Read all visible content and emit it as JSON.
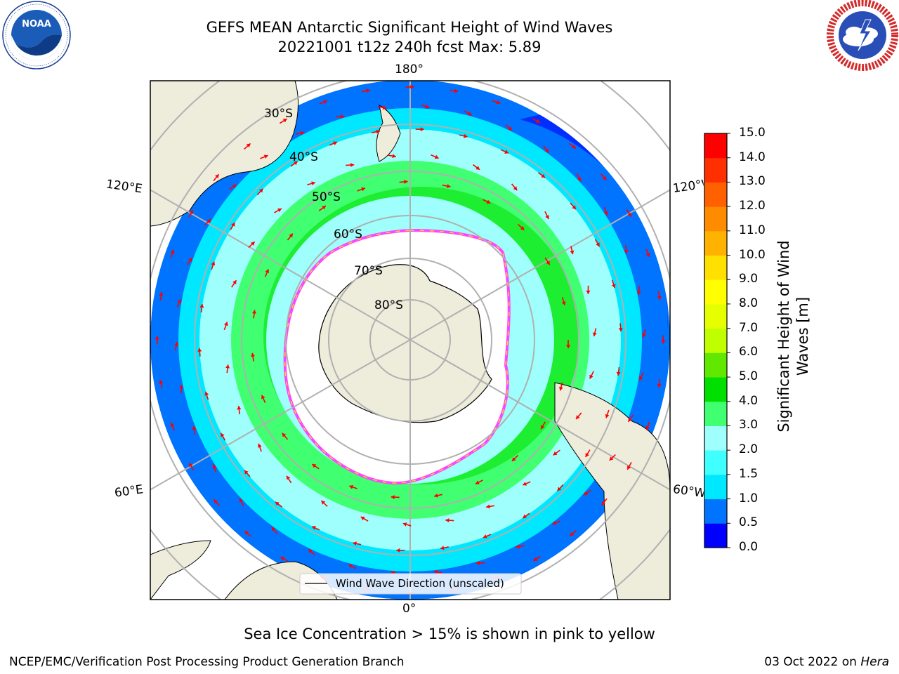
{
  "header": {
    "title_line1": "GEFS MEAN Antarctic Significant Height of Wind Waves",
    "title_line2": "20221001 t12z 240h fcst   Max: 5.89"
  },
  "logos": {
    "noaa_text": "NOAA",
    "noaa_ring_text": "NATIONAL OCEANIC AND ATMOSPHERIC ADMINISTRATION · U.S. DEPARTMENT OF COMMERCE",
    "nws_ring_text": "NATIONAL WEATHER SERVICE"
  },
  "map": {
    "projection": "south-polar-stereographic",
    "lon_labels": {
      "top": "180°",
      "bottom": "0°",
      "left_upper": "120°E",
      "right_upper": "120°W",
      "left_lower": "60°E",
      "right_lower": "60°W"
    },
    "lat_labels": [
      "30°S",
      "40°S",
      "50°S",
      "60°S",
      "70°S",
      "80°S"
    ],
    "legend_label": "Wind Wave Direction (unscaled)",
    "colors": {
      "land": "#eeecdb",
      "ice": "#ffffff",
      "arrow": "#ff0000",
      "ice_edge": [
        "#ff44ff",
        "#ff99ff",
        "#ffcc33"
      ]
    }
  },
  "colorbar": {
    "label": "Significant Height of Wind Waves [m]",
    "label_line1": "Significant Height of Wind",
    "label_line2": "Waves [m]",
    "ticks": [
      "0.0",
      "0.5",
      "1.0",
      "1.5",
      "2.0",
      "3.0",
      "4.0",
      "5.0",
      "6.0",
      "7.0",
      "8.0",
      "9.0",
      "10.0",
      "11.0",
      "12.0",
      "13.0",
      "14.0",
      "15.0"
    ],
    "colors": [
      "#0000ff",
      "#0073ff",
      "#00e8ff",
      "#40ffff",
      "#9ffffc",
      "#40ff70",
      "#00e000",
      "#60e800",
      "#bfff00",
      "#e5ff00",
      "#ffff00",
      "#ffe000",
      "#ffb300",
      "#ff8c00",
      "#ff6000",
      "#ff3000",
      "#ff0000"
    ]
  },
  "caption": "Sea Ice Concentration > 15% is shown in pink to yellow",
  "footer": {
    "left": "NCEP/EMC/Verification Post Processing Product Generation Branch",
    "right_prefix": "03 Oct 2022 on ",
    "right_machine": "Hera"
  }
}
